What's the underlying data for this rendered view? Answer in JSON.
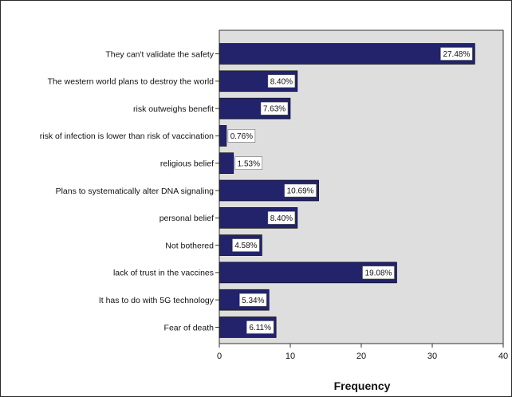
{
  "chart_data": {
    "type": "bar",
    "orientation": "horizontal",
    "categories": [
      "They can't validate the safety",
      "The western world plans to destroy the world",
      "risk outweighs benefit",
      "risk of infection is lower than risk of vaccination",
      "religious belief",
      "Plans to systematically alter DNA signaling",
      "personal belief",
      "Not bothered",
      "lack of trust in the vaccines",
      "It has to do with 5G technology",
      "Fear of death"
    ],
    "values": [
      36,
      11,
      10,
      1,
      2,
      14,
      11,
      6,
      25,
      7,
      8
    ],
    "data_labels": [
      "27.48%",
      "8.40%",
      "7.63%",
      "0.76%",
      "1.53%",
      "10.69%",
      "8.40%",
      "4.58%",
      "19.08%",
      "5.34%",
      "6.11%"
    ],
    "xlabel": "Frequency",
    "ylabel": "",
    "xlim": [
      0,
      40
    ],
    "xticks": [
      0,
      10,
      20,
      30,
      40
    ],
    "xtick_labels": [
      "0",
      "10",
      "20",
      "30",
      "40"
    ],
    "grid": false,
    "colors": {
      "bar": "#22236b",
      "plot_background": "#dedede",
      "label_box": "#ffffff"
    }
  }
}
